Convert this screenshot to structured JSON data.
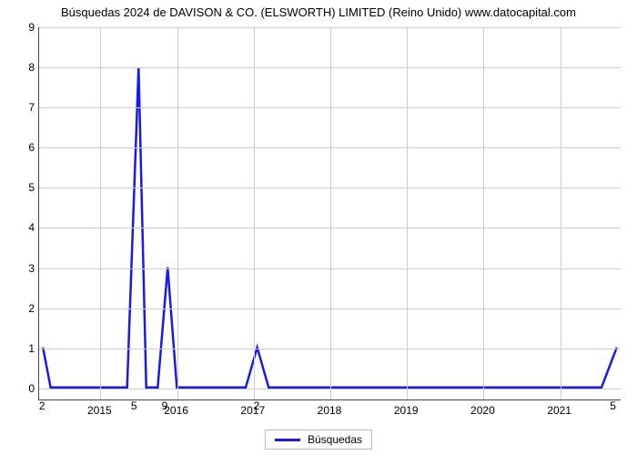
{
  "title": "Búsquedas 2024 de DAVISON & CO. (ELSWORTH) LIMITED (Reino Unido) www.datocapital.com",
  "chart": {
    "type": "line",
    "background_color": "#ffffff",
    "grid_color": "#cccccc",
    "axis_color": "#444444",
    "title_fontsize": 13,
    "tick_fontsize": 12,
    "line_color": "#1818f0",
    "line_width": 2.5,
    "x_domain": [
      2014.2,
      2021.8
    ],
    "y_domain": [
      -0.3,
      9
    ],
    "y_ticks": [
      0,
      1,
      2,
      3,
      4,
      5,
      6,
      7,
      8,
      9
    ],
    "x_ticks": [
      2015,
      2016,
      2017,
      2018,
      2019,
      2020,
      2021
    ],
    "peak_labels": [
      {
        "x": 2014.25,
        "y_anchor": 0,
        "text": "2",
        "dy": 12
      },
      {
        "x": 2015.45,
        "y_anchor": 0,
        "text": "5",
        "dy": 12
      },
      {
        "x": 2015.85,
        "y_anchor": 0,
        "text": "9",
        "dy": 12
      },
      {
        "x": 2017.05,
        "y_anchor": 0,
        "text": "2",
        "dy": 12
      },
      {
        "x": 2021.7,
        "y_anchor": 0,
        "text": "5",
        "dy": 12
      }
    ],
    "series": {
      "label": "Búsquedas",
      "points": [
        [
          2014.25,
          1.0
        ],
        [
          2014.35,
          0.0
        ],
        [
          2015.35,
          0.0
        ],
        [
          2015.5,
          8.0
        ],
        [
          2015.6,
          0.0
        ],
        [
          2015.75,
          0.0
        ],
        [
          2015.88,
          3.0
        ],
        [
          2016.0,
          0.0
        ],
        [
          2016.9,
          0.0
        ],
        [
          2017.05,
          1.0
        ],
        [
          2017.2,
          0.0
        ],
        [
          2021.55,
          0.0
        ],
        [
          2021.75,
          1.0
        ]
      ]
    }
  },
  "legend": {
    "label": "Búsquedas"
  }
}
